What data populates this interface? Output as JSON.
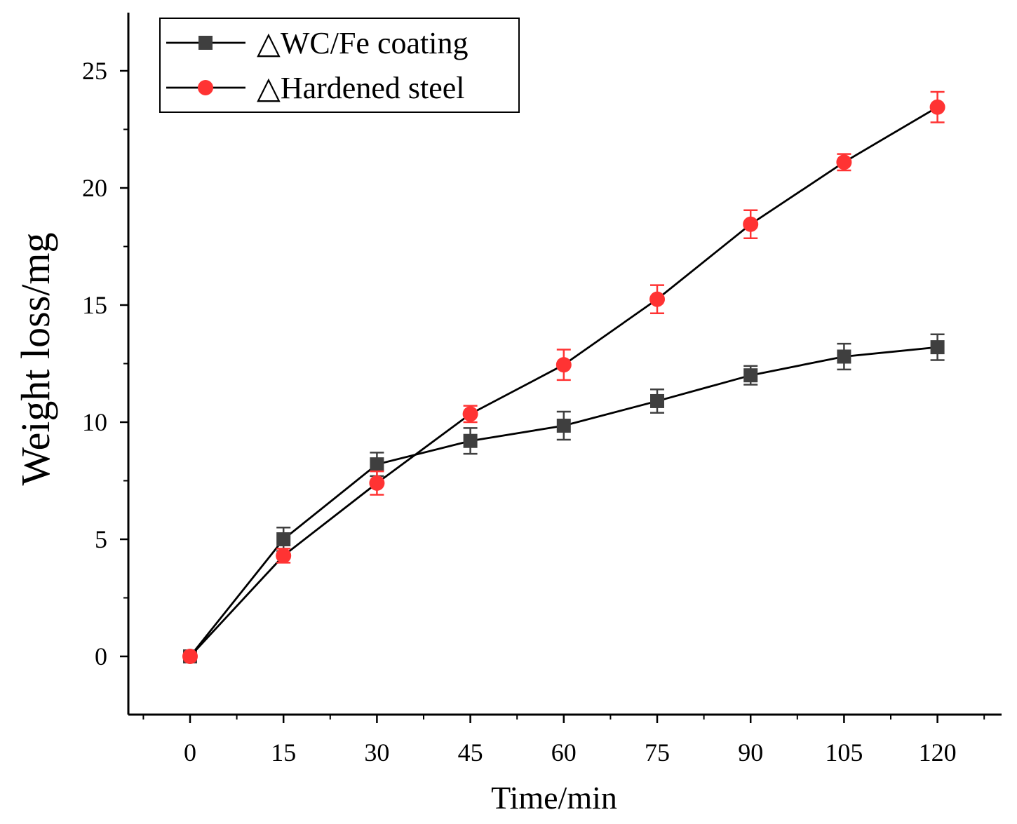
{
  "chart_data": {
    "type": "line",
    "xlabel": "Time/min",
    "ylabel": "Weight loss/mg",
    "xlim": [
      -12,
      128
    ],
    "ylim": [
      -2.5,
      27.5
    ],
    "x_ticks": [
      0,
      15,
      30,
      45,
      60,
      75,
      90,
      105,
      120
    ],
    "y_ticks": [
      0,
      5,
      10,
      15,
      20,
      25
    ],
    "x_tick_labels": [
      "0",
      "15",
      "30",
      "45",
      "60",
      "75",
      "90",
      "105",
      "120"
    ],
    "y_tick_labels": [
      "0",
      "5",
      "10",
      "15",
      "20",
      "25"
    ],
    "legend_position": "top-left",
    "grid": false,
    "x": [
      0,
      15,
      30,
      45,
      60,
      75,
      90,
      105,
      120
    ],
    "series": [
      {
        "name": "△WC/Fe coating",
        "marker": "square",
        "color": "#3f3f3f",
        "line_color": "#000000",
        "values": [
          0,
          5.0,
          8.2,
          9.2,
          9.85,
          10.9,
          12.0,
          12.8,
          13.2
        ],
        "errors": [
          0,
          0.5,
          0.5,
          0.55,
          0.6,
          0.5,
          0.4,
          0.55,
          0.55
        ]
      },
      {
        "name": "△Hardened steel",
        "marker": "circle",
        "color": "#ff3333",
        "line_color": "#000000",
        "values": [
          0,
          4.3,
          7.4,
          10.35,
          12.45,
          15.25,
          18.45,
          21.1,
          23.45
        ],
        "errors": [
          0,
          0.3,
          0.5,
          0.35,
          0.65,
          0.6,
          0.6,
          0.35,
          0.65
        ]
      }
    ]
  }
}
